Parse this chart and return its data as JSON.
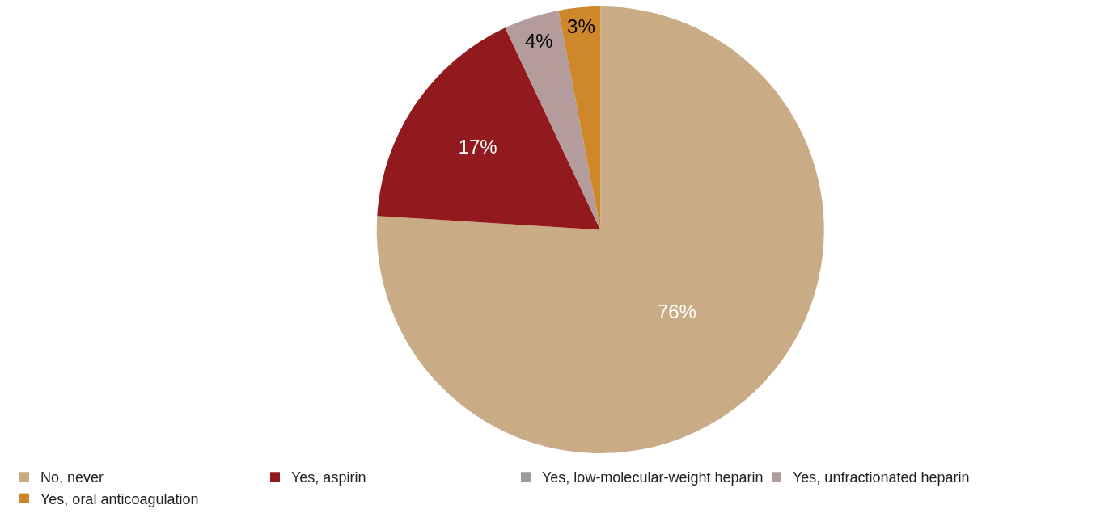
{
  "chart_data": {
    "type": "pie",
    "categories": [
      "No, never",
      "Yes, aspirin",
      "Yes, low-molecular-weight heparin",
      "Yes, unfractionated heparin",
      "Yes, oral anticoagulation"
    ],
    "values": [
      76,
      17,
      0,
      4,
      3
    ],
    "colors": [
      "#c9ac86",
      "#921a1e",
      "#9a9ca0",
      "#b59c9c",
      "#cf872b"
    ],
    "value_labels": [
      "76%",
      "17%",
      null,
      "4%",
      "3%"
    ],
    "legend": "bottom"
  }
}
